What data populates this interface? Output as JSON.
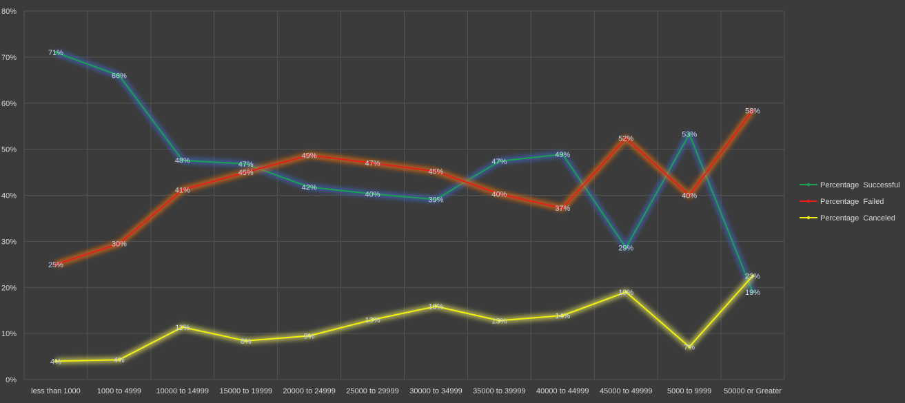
{
  "chart_data": {
    "type": "line",
    "title": "",
    "xlabel": "",
    "ylabel": "",
    "ylim": [
      0,
      0.8
    ],
    "yticks": [
      0,
      0.1,
      0.2,
      0.3,
      0.4,
      0.5,
      0.6,
      0.7,
      0.8
    ],
    "ytick_labels": [
      "0%",
      "10%",
      "20%",
      "30%",
      "40%",
      "50%",
      "60%",
      "70%",
      "80%"
    ],
    "grid": true,
    "legend_position": "right",
    "categories": [
      "less than 1000",
      "1000 to 4999",
      "10000 to 14999",
      "15000 to 19999",
      "20000 to 24999",
      "25000 to 29999",
      "30000 to 34999",
      "35000 to 39999",
      "40000 to 44999",
      "45000 to 49999",
      "5000 to 9999",
      "50000 or Greater"
    ],
    "series": [
      {
        "name": "Percentage  Successful",
        "color": "#1aa050",
        "glow": "#3e64b4",
        "values": [
          0.71,
          0.66,
          0.476,
          0.468,
          0.418,
          0.403,
          0.391,
          0.474,
          0.489,
          0.286,
          0.533,
          0.19
        ],
        "labels": [
          "71%",
          "66%",
          "48%",
          "47%",
          "42%",
          "40%",
          "39%",
          "47%",
          "49%",
          "29%",
          "53%",
          "19%"
        ]
      },
      {
        "name": "Percentage  Failed",
        "color": "#e0211b",
        "glow": "#e06a12",
        "values": [
          0.25,
          0.295,
          0.412,
          0.45,
          0.487,
          0.47,
          0.452,
          0.403,
          0.372,
          0.524,
          0.4,
          0.584
        ],
        "labels": [
          "25%",
          "30%",
          "41%",
          "45%",
          "49%",
          "47%",
          "45%",
          "40%",
          "37%",
          "52%",
          "40%",
          "58%"
        ]
      },
      {
        "name": "Percentage  Canceled",
        "color": "#f2f20d",
        "glow": "#c8c85a",
        "values": [
          0.04,
          0.043,
          0.114,
          0.084,
          0.095,
          0.13,
          0.159,
          0.128,
          0.139,
          0.19,
          0.071,
          0.225
        ],
        "labels": [
          "4%",
          "4%",
          "11%",
          "8%",
          "9%",
          "13%",
          "16%",
          "13%",
          "14%",
          "19%",
          "7%",
          "23%"
        ]
      }
    ]
  }
}
